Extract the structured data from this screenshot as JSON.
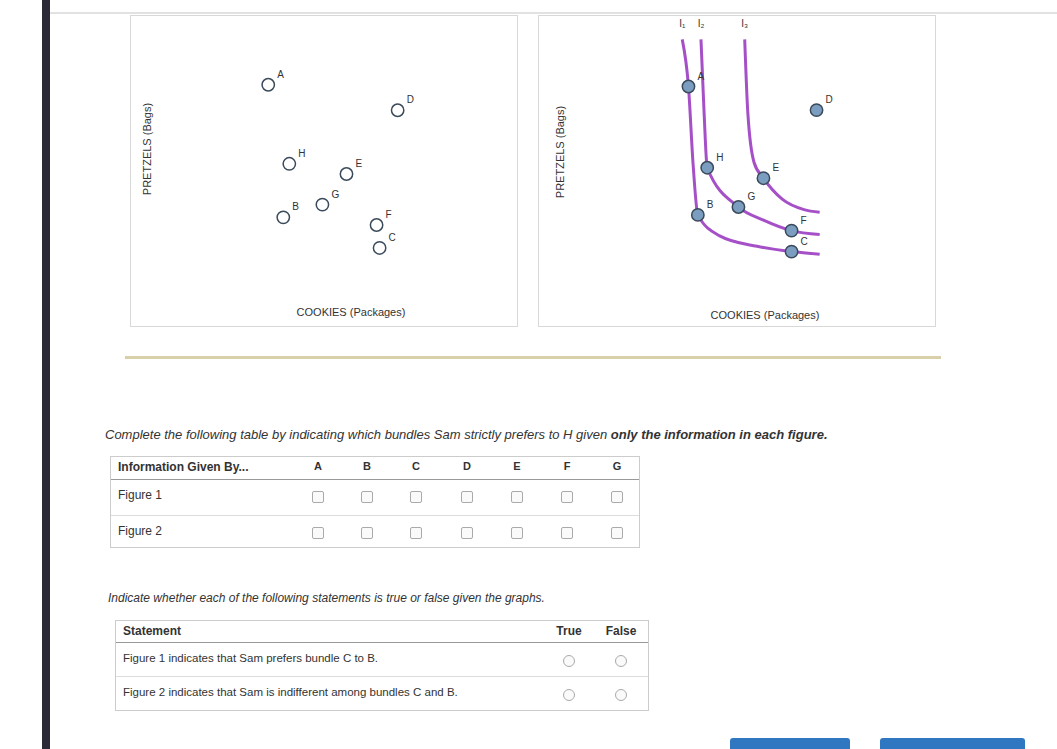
{
  "chart_data": [
    {
      "type": "scatter",
      "xlabel": "COOKIES (Packages)",
      "ylabel": "PRETZELS (Bags)",
      "xlim": [
        0,
        10.5
      ],
      "ylim": [
        0,
        10
      ],
      "tick_labels": false,
      "color": "#ffffff",
      "points": [
        {
          "name": "A",
          "x": 2.5,
          "y": 7.5
        },
        {
          "name": "H",
          "x": 3.2,
          "y": 4.4
        },
        {
          "name": "E",
          "x": 5.1,
          "y": 4.0
        },
        {
          "name": "D",
          "x": 6.8,
          "y": 6.5
        },
        {
          "name": "B",
          "x": 3.0,
          "y": 2.3
        },
        {
          "name": "G",
          "x": 4.3,
          "y": 2.8
        },
        {
          "name": "F",
          "x": 6.1,
          "y": 2.0
        },
        {
          "name": "C",
          "x": 6.2,
          "y": 1.1
        }
      ]
    },
    {
      "type": "scatter",
      "xlabel": "COOKIES (Packages)",
      "ylabel": "PRETZELS (Bags)",
      "xlim": [
        0,
        10.5
      ],
      "ylim": [
        0,
        10
      ],
      "tick_labels": false,
      "color": "#7b9dc0",
      "points": [
        {
          "name": "A",
          "x": 2.8,
          "y": 7.5
        },
        {
          "name": "H",
          "x": 3.4,
          "y": 4.4
        },
        {
          "name": "E",
          "x": 5.2,
          "y": 4.0
        },
        {
          "name": "D",
          "x": 6.9,
          "y": 6.6
        },
        {
          "name": "B",
          "x": 3.1,
          "y": 2.6
        },
        {
          "name": "G",
          "x": 4.4,
          "y": 2.9
        },
        {
          "name": "F",
          "x": 6.1,
          "y": 2.0
        },
        {
          "name": "C",
          "x": 6.1,
          "y": 1.2
        }
      ],
      "curves": [
        {
          "name": "I₁",
          "type": "line",
          "color": "#a650c8",
          "x": [
            2.6,
            2.8,
            2.95,
            3.1,
            3.8,
            5.0,
            6.1,
            7.0
          ],
          "y": [
            9.3,
            7.5,
            4.5,
            2.6,
            1.8,
            1.4,
            1.2,
            1.1
          ]
        },
        {
          "name": "I₂",
          "type": "line",
          "color": "#a650c8",
          "x": [
            3.2,
            3.3,
            3.4,
            4.4,
            5.2,
            6.1,
            7.0
          ],
          "y": [
            9.3,
            6.5,
            4.4,
            2.9,
            2.4,
            2.0,
            1.85
          ]
        },
        {
          "name": "I₃",
          "type": "line",
          "color": "#a650c8",
          "x": [
            4.6,
            4.7,
            4.9,
            5.2,
            5.8,
            6.5,
            7.0
          ],
          "y": [
            9.3,
            6.5,
            4.6,
            4.0,
            3.2,
            2.8,
            2.7
          ]
        }
      ]
    }
  ],
  "prompt": {
    "text": "Complete the following table by indicating which bundles Sam strictly prefers to H given ",
    "bold": "only the information in each figure."
  },
  "preference_table": {
    "header": [
      "Information Given By...",
      "A",
      "B",
      "C",
      "D",
      "E",
      "F",
      "G"
    ],
    "rows": [
      "Figure 1",
      "Figure 2"
    ]
  },
  "statement_prompt": "Indicate whether each of the following statements is true or false given the graphs.",
  "statement_table": {
    "header": [
      "Statement",
      "True",
      "False"
    ],
    "rows": [
      "Figure 1 indicates that Sam prefers bundle C to B.",
      "Figure 2 indicates that Sam is indifferent among bundles C and B."
    ]
  }
}
